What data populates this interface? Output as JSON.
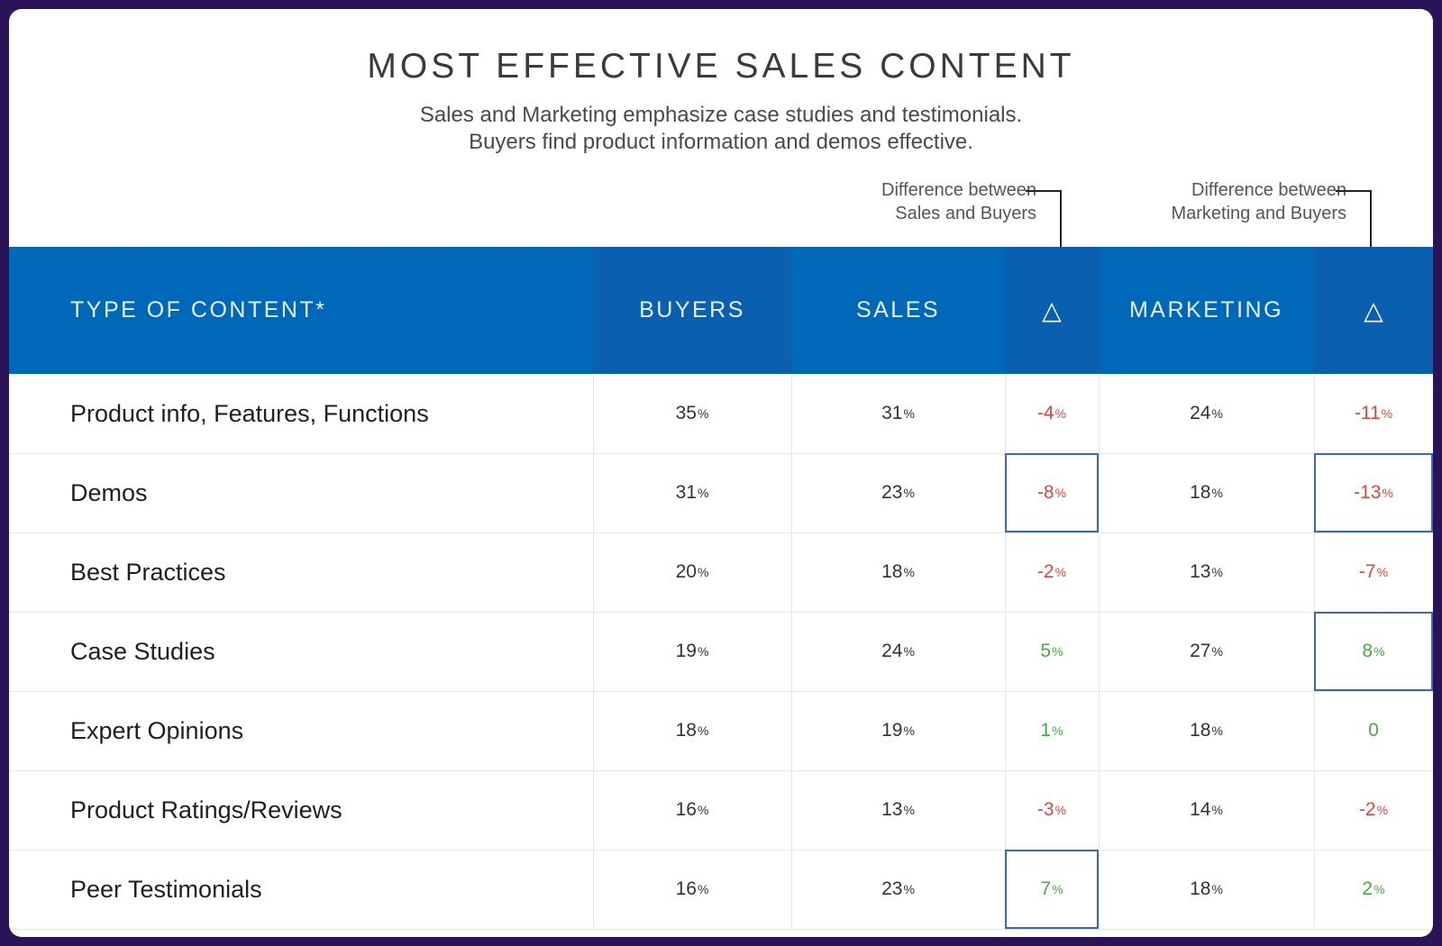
{
  "title": "MOST EFFECTIVE SALES CONTENT",
  "subtitle_line1": "Sales and Marketing emphasize case studies and testimonials.",
  "subtitle_line2": "Buyers find product information and demos effective.",
  "callouts": {
    "sales_line1": "Difference between",
    "sales_line2": "Sales and Buyers",
    "marketing_line1": "Difference between",
    "marketing_line2": "Marketing and Buyers"
  },
  "header": {
    "type": "TYPE OF CONTENT*",
    "buyers": "BUYERS",
    "sales": "SALES",
    "delta1": "△",
    "marketing": "MARKETING",
    "delta2": "△"
  },
  "colors": {
    "header_bg": "#0068b8",
    "negative": "#e0443a",
    "positive": "#3fae3f",
    "highlight_border": "#3a66c4"
  },
  "chart_data": {
    "type": "table",
    "columns": [
      "TYPE OF CONTENT*",
      "BUYERS",
      "SALES",
      "△",
      "MARKETING",
      "△"
    ],
    "rows": [
      {
        "label": "Product info, Features, Functions",
        "buyers": "35",
        "sales": "31",
        "d_sales": "-4",
        "marketing": "24",
        "d_mkt": "-11",
        "hl_sales": false,
        "hl_mkt": false
      },
      {
        "label": "Demos",
        "buyers": "31",
        "sales": "23",
        "d_sales": "-8",
        "marketing": "18",
        "d_mkt": "-13",
        "hl_sales": true,
        "hl_mkt": true
      },
      {
        "label": "Best Practices",
        "buyers": "20",
        "sales": "18",
        "d_sales": "-2",
        "marketing": "13",
        "d_mkt": "-7",
        "hl_sales": false,
        "hl_mkt": false
      },
      {
        "label": "Case Studies",
        "buyers": "19",
        "sales": "24",
        "d_sales": "5",
        "marketing": "27",
        "d_mkt": "8",
        "hl_sales": false,
        "hl_mkt": true
      },
      {
        "label": "Expert Opinions",
        "buyers": "18",
        "sales": "19",
        "d_sales": "1",
        "marketing": "18",
        "d_mkt": "0",
        "hl_sales": false,
        "hl_mkt": false
      },
      {
        "label": "Product Ratings/Reviews",
        "buyers": "16",
        "sales": "13",
        "d_sales": "-3",
        "marketing": "14",
        "d_mkt": "-2",
        "hl_sales": false,
        "hl_mkt": false
      },
      {
        "label": "Peer Testimonials",
        "buyers": "16",
        "sales": "23",
        "d_sales": "7",
        "marketing": "18",
        "d_mkt": "2",
        "hl_sales": true,
        "hl_mkt": false
      }
    ],
    "unit": "%"
  }
}
